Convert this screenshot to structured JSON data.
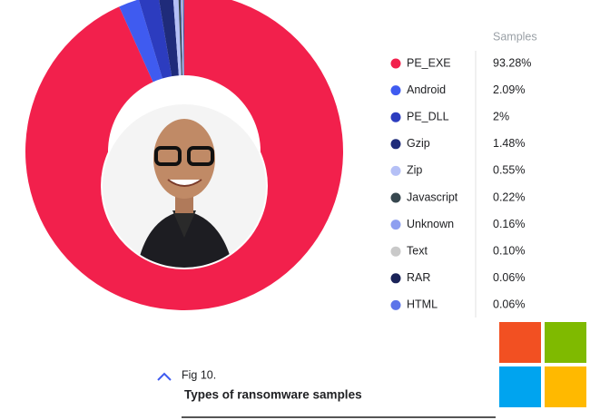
{
  "chart_data": {
    "type": "donut",
    "value_header": "Samples",
    "categories": [
      "PE_EXE",
      "Android",
      "PE_DLL",
      "Gzip",
      "Zip",
      "Javascript",
      "Unknown",
      "Text",
      "RAR",
      "HTML"
    ],
    "values": [
      93.28,
      2.09,
      2,
      1.48,
      0.55,
      0.22,
      0.16,
      0.1,
      0.06,
      0.06
    ],
    "value_labels": [
      "93.28%",
      "2.09%",
      "2%",
      "1.48%",
      "0.55%",
      "0.22%",
      "0.16%",
      "0.10%",
      "0.06%",
      "0.06%"
    ],
    "colors": [
      "#f2204c",
      "#3f5bf0",
      "#2c3cbf",
      "#1f2b7a",
      "#b5c0f6",
      "#37474f",
      "#8e9ff0",
      "#c9c9c9",
      "#1a2358",
      "#5d75e9"
    ],
    "figure_label": "Fig 10.",
    "caption": "Types of ransomware samples"
  }
}
